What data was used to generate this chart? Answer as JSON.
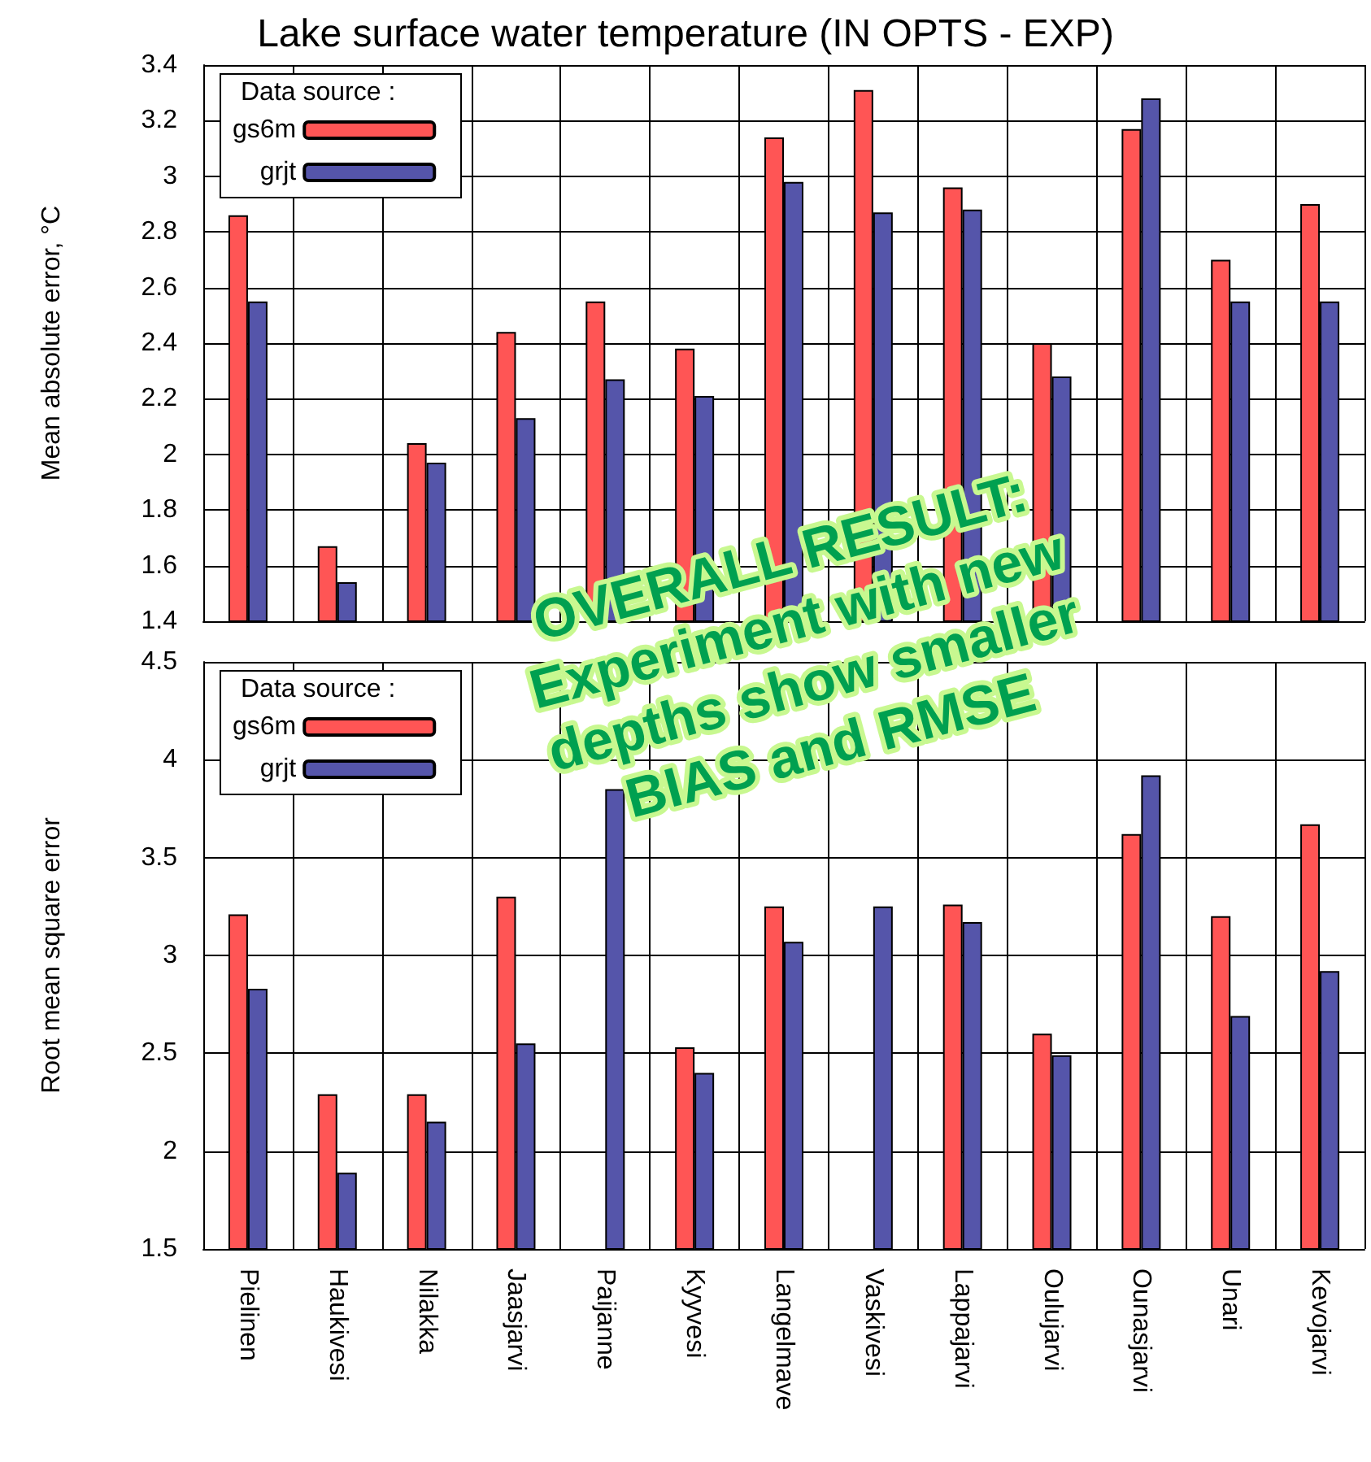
{
  "chart_data": [
    {
      "type": "bar",
      "title": "Lake surface water temperature (IN OPTS - EXP)",
      "ylabel": "Mean absolute error, °C",
      "legend_title": "Data source :",
      "categories": [
        null,
        null,
        null,
        null,
        null,
        null,
        null,
        null,
        null,
        null,
        null,
        null,
        null
      ],
      "series": [
        {
          "name": "gs6m",
          "color": "#ff5555",
          "values": [
            2.86,
            1.67,
            2.04,
            2.44,
            2.55,
            2.38,
            3.14,
            3.31,
            2.96,
            2.4,
            3.17,
            2.7,
            2.9
          ]
        },
        {
          "name": "grjt",
          "color": "#5555aa",
          "values": [
            2.55,
            1.54,
            1.97,
            2.13,
            2.27,
            2.21,
            2.98,
            2.87,
            2.88,
            2.28,
            3.28,
            2.55,
            2.55
          ]
        }
      ],
      "ylim": [
        1.4,
        3.4
      ],
      "yticks": [
        1.4,
        1.6,
        1.8,
        2,
        2.2,
        2.4,
        2.6,
        2.8,
        3,
        3.2,
        3.4
      ],
      "grid": true,
      "legend": "top left",
      "tick_labels": "y",
      "annotations": [
        "OVERALL RESULT:\nExperiment with new\ndepths show smaller\nBIAS and RMSE"
      ]
    },
    {
      "type": "bar",
      "ylabel": "Root mean square error",
      "legend_title": "Data source :",
      "categories": [
        "Pielinen",
        "Haukivesi",
        "Nilakka",
        "Jaasjarvi",
        "Paijanne",
        "Kyyvesi",
        "Langelmave",
        "Vaskivesi",
        "Lappajarvi",
        "Oulujarvi",
        "Ounasjarvi",
        "Unari",
        "Kevojarvi"
      ],
      "series": [
        {
          "name": "gs6m",
          "color": "#ff5555",
          "values": [
            3.21,
            2.29,
            2.29,
            3.3,
            null,
            2.53,
            3.25,
            null,
            3.26,
            2.6,
            3.62,
            3.2,
            3.67
          ]
        },
        {
          "name": "grjt",
          "color": "#5555aa",
          "values": [
            2.83,
            1.89,
            2.15,
            2.55,
            3.85,
            2.4,
            3.07,
            3.25,
            3.17,
            2.49,
            3.92,
            2.69,
            2.92
          ]
        }
      ],
      "ylim": [
        1.5,
        4.5
      ],
      "yticks": [
        1.5,
        2,
        2.5,
        3,
        3.5,
        4,
        4.5
      ],
      "grid": true,
      "legend": "top left"
    }
  ]
}
